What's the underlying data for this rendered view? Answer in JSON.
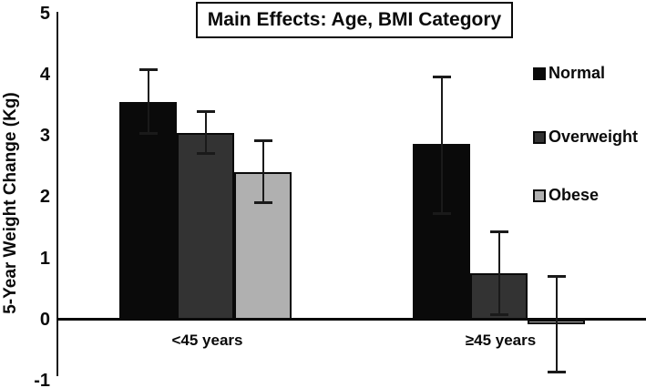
{
  "chart_data": {
    "type": "bar",
    "title": "Main Effects: Age, BMI Category",
    "ylabel": "5-Year Weight Change (Kg)",
    "xlabel": "",
    "ylim": [
      -1,
      5
    ],
    "yticks": [
      5,
      4,
      3,
      2,
      1,
      0,
      -1
    ],
    "categories": [
      "<45 years",
      "≥45 years"
    ],
    "series": [
      {
        "name": "Normal",
        "color": "#0a0a0a",
        "values": [
          3.55,
          2.87
        ],
        "err_low": [
          3.05,
          1.74
        ],
        "err_high": [
          4.08,
          3.97
        ]
      },
      {
        "name": "Overweight",
        "color": "#333333",
        "values": [
          3.05,
          0.76
        ],
        "err_low": [
          2.72,
          0.09
        ],
        "err_high": [
          3.41,
          1.44
        ]
      },
      {
        "name": "Obese",
        "color": "#b0b0b0",
        "values": [
          2.4,
          -0.07
        ],
        "err_low": [
          1.92,
          -0.85
        ],
        "err_high": [
          2.93,
          0.72
        ]
      }
    ],
    "legend_position": "right",
    "grid": false,
    "background_color": "#ffffff",
    "axis_color": "#0a0a0a"
  }
}
